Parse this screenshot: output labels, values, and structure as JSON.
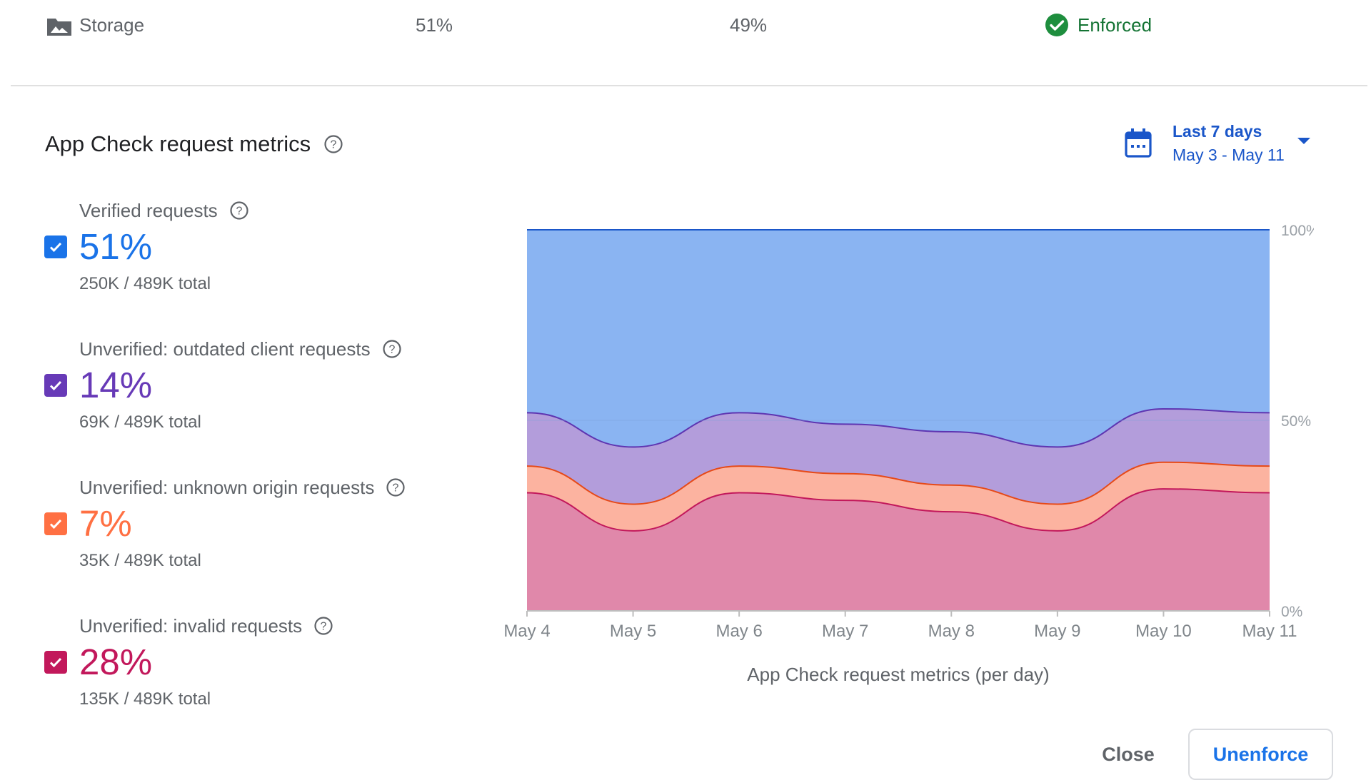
{
  "row": {
    "service": "Storage",
    "verified": "51%",
    "unverified": "49%",
    "status": "Enforced"
  },
  "section_title": "App Check request metrics",
  "date_range": {
    "label": "Last 7 days",
    "range": "May 3 - May 11"
  },
  "metrics": [
    {
      "label": "Verified requests",
      "value": "51%",
      "sub": "250K / 489K total",
      "color": "#1a73e8"
    },
    {
      "label": "Unverified: outdated client requests",
      "value": "14%",
      "sub": "69K / 489K total",
      "color": "#673ab7"
    },
    {
      "label": "Unverified: unknown origin requests",
      "value": "7%",
      "sub": "35K / 489K total",
      "color": "#ff7043"
    },
    {
      "label": "Unverified: invalid requests",
      "value": "28%",
      "sub": "135K / 489K total",
      "color": "#c2185b"
    }
  ],
  "chart_data": {
    "type": "area",
    "stacked": true,
    "x": [
      "May 4",
      "May 5",
      "May 6",
      "May 7",
      "May 8",
      "May 9",
      "May 10",
      "May 11"
    ],
    "y_ticks": [
      "100%",
      "50%",
      "0%"
    ],
    "ylim": [
      0,
      100
    ],
    "xlabel": "App Check request metrics (per day)",
    "series": [
      {
        "name": "Unverified: invalid requests",
        "color": "#e088aa",
        "line": "#c2185b",
        "values": [
          31,
          21,
          31,
          29,
          26,
          21,
          32,
          31
        ]
      },
      {
        "name": "Unverified: unknown origin requests",
        "color": "#fcb3a0",
        "line": "#e64a19",
        "values": [
          7,
          7,
          7,
          7,
          7,
          7,
          7,
          7
        ]
      },
      {
        "name": "Unverified: outdated client requests",
        "color": "#b39ddb",
        "line": "#5e35b1",
        "values": [
          14,
          15,
          14,
          13,
          14,
          15,
          14,
          14
        ]
      },
      {
        "name": "Verified requests",
        "color": "#8ab4f2",
        "line": "#1a56c9",
        "values": [
          48,
          57,
          48,
          51,
          53,
          57,
          47,
          48
        ]
      }
    ]
  },
  "buttons": {
    "close": "Close",
    "unenforce": "Unenforce"
  }
}
